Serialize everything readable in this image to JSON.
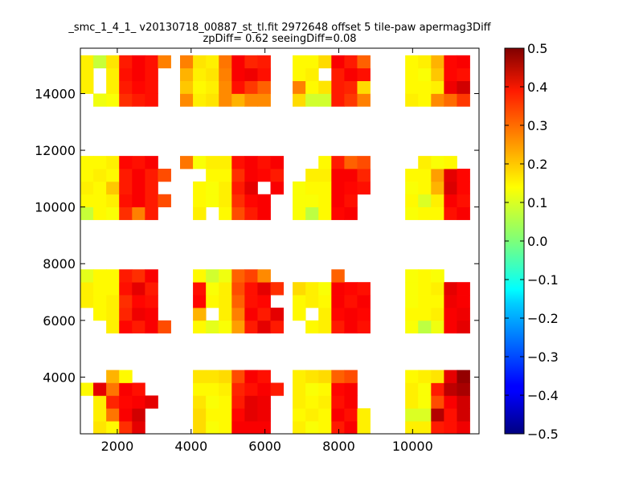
{
  "chart_data": {
    "type": "heatmap",
    "title_lines": [
      "_smc_1_4_1_ v20130718_00887_st_tl.fit 2972648 offset 5 tile-paw apermag3Diff",
      "zpDiff= 0.62 seeingDiff=0.08"
    ],
    "xlabel": "",
    "ylabel": "",
    "xlim": [
      1000,
      11800
    ],
    "ylim": [
      2000,
      15600
    ],
    "x_ticks": [
      2000,
      4000,
      6000,
      8000,
      10000
    ],
    "y_ticks": [
      4000,
      6000,
      8000,
      10000,
      12000,
      14000
    ],
    "cell_size": [
      350,
      450
    ],
    "colormap": "jet",
    "colorbar": {
      "vmin": -0.5,
      "vmax": 0.5,
      "ticks": [
        "0.5",
        "0.4",
        "0.3",
        "0.2",
        "0.1",
        "0.0",
        "−0.1",
        "−0.2",
        "−0.3",
        "−0.4",
        "−0.5"
      ],
      "tick_values": [
        0.5,
        0.4,
        0.3,
        0.2,
        0.1,
        0.0,
        -0.1,
        -0.2,
        -0.3,
        -0.4,
        -0.5
      ]
    },
    "grid": false,
    "columns_x": [
      1175,
      1525,
      1875,
      2225,
      2575,
      2925,
      3275,
      3875,
      4225,
      4575,
      4925,
      5275,
      5625,
      5975,
      6325,
      6925,
      7275,
      7625,
      7975,
      8325,
      8675,
      9025,
      9975,
      10325,
      10675,
      11025,
      11375
    ],
    "rows_y": [
      2225,
      2675,
      3125,
      3575,
      4025,
      5775,
      6225,
      6675,
      7125,
      7575,
      9775,
      10225,
      10675,
      11125,
      11575,
      13775,
      14225,
      14675,
      15125
    ],
    "grid_values": [
      [
        null,
        0.15,
        0.13,
        0.33,
        0.4,
        null,
        null,
        null,
        0.16,
        0.12,
        0.13,
        0.38,
        0.38,
        0.38,
        null,
        0.14,
        0.12,
        0.13,
        0.35,
        0.38,
        0.14,
        null,
        0.14,
        0.14,
        0.35,
        0.36,
        0.39
      ],
      [
        null,
        0.14,
        0.26,
        0.38,
        0.42,
        null,
        null,
        null,
        0.16,
        0.13,
        0.13,
        0.37,
        0.4,
        0.39,
        null,
        0.13,
        0.14,
        0.13,
        0.38,
        0.36,
        0.14,
        null,
        0.09,
        0.09,
        0.45,
        0.36,
        0.42
      ],
      [
        null,
        0.14,
        0.34,
        0.37,
        0.38,
        0.4,
        null,
        null,
        0.15,
        0.12,
        0.13,
        0.35,
        0.4,
        0.39,
        null,
        0.14,
        0.13,
        0.14,
        0.36,
        0.38,
        null,
        null,
        0.14,
        0.12,
        0.3,
        0.38,
        0.42
      ],
      [
        0.13,
        0.4,
        0.26,
        0.38,
        0.36,
        null,
        null,
        null,
        0.13,
        0.13,
        0.14,
        0.34,
        0.36,
        0.38,
        0.35,
        0.14,
        0.12,
        0.13,
        0.37,
        0.38,
        null,
        null,
        0.14,
        0.12,
        0.35,
        0.44,
        0.46
      ],
      [
        null,
        null,
        0.2,
        0.13,
        null,
        null,
        null,
        null,
        0.15,
        0.15,
        0.16,
        0.3,
        0.38,
        0.36,
        null,
        0.14,
        0.15,
        0.16,
        0.28,
        0.3,
        null,
        null,
        0.13,
        0.14,
        0.15,
        0.4,
        0.48
      ],
      [
        null,
        null,
        0.14,
        0.37,
        0.35,
        0.38,
        0.3,
        null,
        0.13,
        0.1,
        0.12,
        0.22,
        0.35,
        0.4,
        0.35,
        null,
        0.13,
        0.14,
        0.35,
        0.38,
        0.36,
        null,
        0.12,
        0.06,
        0.11,
        0.38,
        0.4
      ],
      [
        null,
        0.13,
        0.14,
        0.34,
        0.39,
        0.38,
        null,
        null,
        0.2,
        null,
        0.14,
        0.25,
        0.38,
        0.35,
        0.4,
        0.13,
        null,
        0.14,
        0.37,
        0.38,
        0.37,
        null,
        0.13,
        0.13,
        0.14,
        0.38,
        0.39
      ],
      [
        0.14,
        0.13,
        0.14,
        0.33,
        0.37,
        0.36,
        null,
        null,
        0.37,
        0.13,
        0.14,
        0.28,
        0.36,
        0.37,
        null,
        0.13,
        0.14,
        0.13,
        0.38,
        0.36,
        0.38,
        null,
        0.12,
        0.13,
        0.13,
        0.39,
        0.38
      ],
      [
        0.14,
        0.13,
        0.13,
        0.36,
        0.4,
        0.35,
        null,
        null,
        0.36,
        0.12,
        0.14,
        0.3,
        0.36,
        0.4,
        0.33,
        0.16,
        0.14,
        0.12,
        0.38,
        0.37,
        0.36,
        null,
        0.12,
        0.13,
        0.14,
        0.4,
        0.38
      ],
      [
        0.1,
        0.13,
        0.13,
        0.35,
        0.33,
        0.38,
        null,
        null,
        0.13,
        0.08,
        0.11,
        0.28,
        0.31,
        0.24,
        null,
        null,
        null,
        null,
        0.28,
        null,
        null,
        null,
        0.12,
        0.13,
        0.12,
        null,
        null
      ],
      [
        0.07,
        0.13,
        0.12,
        0.33,
        0.25,
        0.35,
        null,
        null,
        0.14,
        null,
        0.13,
        0.3,
        0.35,
        0.38,
        null,
        0.12,
        0.06,
        0.13,
        0.37,
        0.38,
        null,
        null,
        0.12,
        0.13,
        0.13,
        0.36,
        0.38
      ],
      [
        0.13,
        0.13,
        0.14,
        0.36,
        0.38,
        0.35,
        0.3,
        null,
        0.13,
        0.12,
        0.14,
        0.33,
        0.37,
        0.38,
        null,
        0.12,
        0.12,
        0.13,
        0.38,
        0.36,
        null,
        null,
        0.13,
        0.09,
        0.14,
        0.38,
        0.36
      ],
      [
        0.14,
        0.13,
        0.18,
        0.35,
        0.38,
        0.35,
        null,
        null,
        0.13,
        0.12,
        0.14,
        0.35,
        0.4,
        null,
        0.38,
        0.12,
        0.13,
        0.13,
        0.38,
        0.37,
        0.36,
        null,
        0.12,
        0.13,
        0.2,
        0.41,
        0.37
      ],
      [
        0.13,
        0.14,
        0.13,
        0.35,
        0.38,
        0.35,
        0.3,
        null,
        null,
        0.13,
        0.13,
        0.33,
        0.38,
        0.37,
        0.35,
        null,
        0.14,
        0.14,
        0.38,
        0.38,
        0.34,
        null,
        0.13,
        0.13,
        0.22,
        0.4,
        0.37
      ],
      [
        0.13,
        0.13,
        0.14,
        0.37,
        0.36,
        0.38,
        null,
        0.26,
        0.12,
        0.14,
        0.14,
        0.36,
        0.38,
        0.36,
        0.38,
        null,
        null,
        0.13,
        0.35,
        0.28,
        0.3,
        null,
        null,
        0.14,
        0.12,
        0.13,
        null
      ],
      [
        null,
        0.11,
        0.12,
        0.33,
        0.35,
        0.36,
        null,
        0.24,
        0.14,
        0.15,
        0.24,
        0.2,
        0.24,
        0.24,
        null,
        0.16,
        0.08,
        0.08,
        0.35,
        0.32,
        0.25,
        null,
        0.14,
        0.13,
        0.24,
        0.27,
        0.32
      ],
      [
        0.14,
        null,
        0.14,
        0.35,
        0.37,
        0.36,
        null,
        0.18,
        0.13,
        0.14,
        0.24,
        0.36,
        0.32,
        0.28,
        null,
        0.25,
        0.13,
        0.15,
        0.35,
        0.34,
        0.16,
        null,
        0.13,
        0.13,
        0.14,
        0.39,
        0.42
      ],
      [
        0.14,
        null,
        0.14,
        0.36,
        0.38,
        0.36,
        null,
        0.2,
        0.14,
        0.15,
        0.25,
        0.38,
        0.39,
        0.36,
        null,
        0.13,
        0.14,
        null,
        0.35,
        0.38,
        0.36,
        null,
        0.13,
        0.12,
        0.18,
        0.37,
        0.36
      ],
      [
        0.14,
        0.07,
        0.15,
        0.35,
        0.38,
        0.36,
        0.25,
        0.25,
        0.15,
        0.14,
        0.26,
        0.38,
        0.34,
        0.35,
        null,
        0.13,
        0.13,
        0.16,
        0.38,
        0.35,
        0.28,
        null,
        0.13,
        0.14,
        0.2,
        0.37,
        0.38
      ]
    ]
  }
}
